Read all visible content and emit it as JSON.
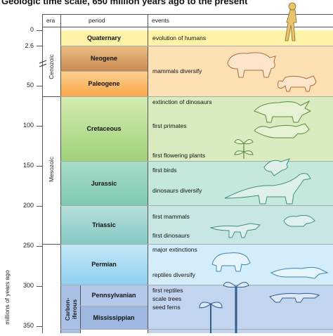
{
  "title": "Geologic time scale, 650 million years ago to the present",
  "headers": {
    "era": "era",
    "period": "period",
    "events": "events"
  },
  "axis_label": "millions of years ago",
  "ticks": [
    "0",
    "2.6",
    "50",
    "100",
    "150",
    "200",
    "250",
    "300",
    "350"
  ],
  "eras": {
    "cenozoic": "Cenozoic",
    "mesozoic": "Mesozoic",
    "carboniferous": "Carbon-\niferous"
  },
  "periods": {
    "quaternary": "Quaternary",
    "neogene": "Neogene",
    "paleogene": "Paleogene",
    "cretaceous": "Cretaceous",
    "jurassic": "Jurassic",
    "triassic": "Triassic",
    "permian": "Permian",
    "pennsylvanian": "Pennsylvanian",
    "mississippian": "Mississippian"
  },
  "events": {
    "humans": "evolution of humans",
    "mammals_diversify": "mammals diversify",
    "ext_dinos": "extinction of dinosaurs",
    "first_primates": "first primates",
    "first_flowering": "first flowering plants",
    "first_birds": "first birds",
    "dinos_diversify": "dinosaurs diversify",
    "first_mammals": "first mammals",
    "first_dinosaurs": "first dinosaurs",
    "major_ext": "major extinctions",
    "reptiles_div": "reptiles diversify",
    "first_reptiles": "first reptiles",
    "scale_trees": "scale trees",
    "seed_ferns": "seed ferns"
  },
  "colors": {
    "quaternary": "#fff3a8",
    "neogene_top": "#e8bf86",
    "neogene_bottom": "#c98a4f",
    "paleogene": "#fbbb6a",
    "cretaceous": "#c9e3a1",
    "jurassic": "#b7e3cf",
    "triassic": "#b2dcd6",
    "permian": "#bfe6f7",
    "carboniferous": "#b9cbe8"
  },
  "icons": [
    "human-icon",
    "rhino-icon",
    "cat-icon",
    "triceratops-icon",
    "primate-icon",
    "flower-icon",
    "bird-icon",
    "sauropod-icon",
    "theropod-icon",
    "mammal-icon",
    "dimetrodon-icon",
    "reptile-icon",
    "scale-tree-icon",
    "seed-fern-icon"
  ]
}
